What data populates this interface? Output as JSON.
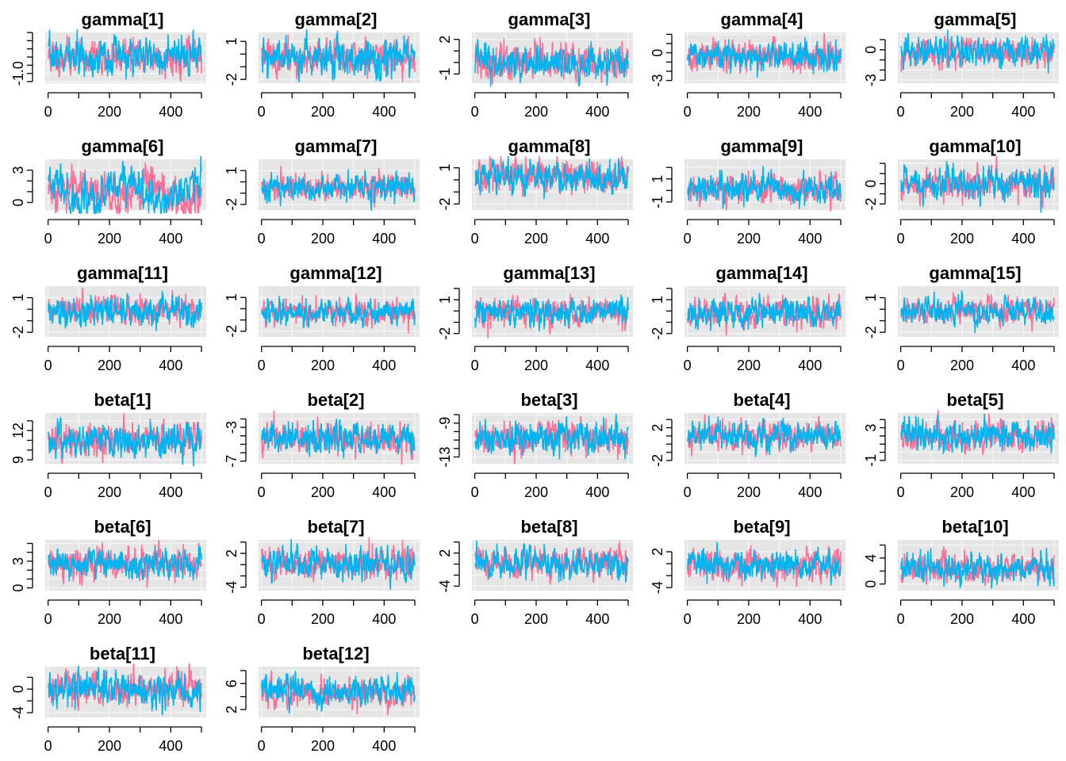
{
  "chart_data": {
    "type": "line",
    "description_of_layout": "grid of MCMC trace plots, 5 per row",
    "colors": {
      "chain1": "#F8766D",
      "chain1_plot": "#FF6E96",
      "chain2": "#00B4F0",
      "panel_bg": "#E5E5E5",
      "grid": "#F4F4F4"
    },
    "x": {
      "min": 1,
      "max": 500,
      "ticks": [
        0,
        200,
        400
      ],
      "minor_ticks": [
        0,
        100,
        200,
        300,
        400,
        500
      ]
    },
    "panels": [
      {
        "title": "gamma[1]",
        "ylim": [
          -1.6,
          1.5
        ],
        "yticks": [
          -1.0
        ],
        "ylabels": [
          "-1.0"
        ],
        "minor": [
          -1.5,
          -1.0,
          -0.5,
          0,
          0.5,
          1.0,
          1.5
        ],
        "center": 0.0,
        "sd": 0.55,
        "drift": 0
      },
      {
        "title": "gamma[2]",
        "ylim": [
          -2.3,
          1.7
        ],
        "yticks": [
          -2,
          1
        ],
        "ylabels": [
          "-2",
          "1"
        ],
        "minor": [
          -2,
          -1,
          0,
          1
        ],
        "center": -0.3,
        "sd": 0.7,
        "drift": 0
      },
      {
        "title": "gamma[3]",
        "ylim": [
          -1.8,
          2.6
        ],
        "yticks": [
          -1,
          2
        ],
        "ylabels": [
          "-1",
          "2"
        ],
        "minor": [
          -1,
          0,
          1,
          2
        ],
        "center": 0.0,
        "sd": 0.75,
        "drift": 0
      },
      {
        "title": "gamma[4]",
        "ylim": [
          -3.3,
          2.2
        ],
        "yticks": [
          -3,
          0
        ],
        "ylabels": [
          "-3",
          "0"
        ],
        "minor": [
          -3,
          -2,
          -1,
          0,
          1,
          2
        ],
        "center": -0.3,
        "sd": 0.8,
        "drift": 0
      },
      {
        "title": "gamma[5]",
        "ylim": [
          -3.3,
          1.7
        ],
        "yticks": [
          -3,
          0
        ],
        "ylabels": [
          "-3",
          "0"
        ],
        "minor": [
          -3,
          -2,
          -1,
          0,
          1
        ],
        "center": -0.2,
        "sd": 0.75,
        "drift": 0
      },
      {
        "title": "gamma[6]",
        "ylim": [
          -0.7,
          4.0
        ],
        "yticks": [
          0,
          3
        ],
        "ylabels": [
          "0",
          "3"
        ],
        "minor": [
          0,
          1,
          2,
          3
        ],
        "center": 1.0,
        "sd": 0.9,
        "drift": 1
      },
      {
        "title": "gamma[7]",
        "ylim": [
          -2.5,
          2.0
        ],
        "yticks": [
          -2,
          1
        ],
        "ylabels": [
          "-2",
          "1"
        ],
        "minor": [
          -2,
          -1,
          0,
          1
        ],
        "center": -0.5,
        "sd": 0.6,
        "drift": 0
      },
      {
        "title": "gamma[8]",
        "ylim": [
          -2.5,
          1.7
        ],
        "yticks": [
          -2,
          1
        ],
        "ylabels": [
          "-2",
          "1"
        ],
        "minor": [
          -2,
          -1,
          0,
          1
        ],
        "center": 0.2,
        "sd": 0.7,
        "drift": 0
      },
      {
        "title": "gamma[9]",
        "ylim": [
          -1.7,
          2.7
        ],
        "yticks": [
          -1,
          1
        ],
        "ylabels": [
          "-1",
          "1"
        ],
        "minor": [
          -1,
          0,
          1,
          2
        ],
        "center": 0.1,
        "sd": 0.65,
        "drift": 0
      },
      {
        "title": "gamma[10]",
        "ylim": [
          -2.6,
          2.4
        ],
        "yticks": [
          -2,
          0
        ],
        "ylabels": [
          "-2",
          "0"
        ],
        "minor": [
          -2,
          -1,
          0,
          1,
          2
        ],
        "center": 0.0,
        "sd": 0.8,
        "drift": 0
      },
      {
        "title": "gamma[11]",
        "ylim": [
          -2.4,
          2.0
        ],
        "yticks": [
          -2,
          1
        ],
        "ylabels": [
          "-2",
          "1"
        ],
        "minor": [
          -2,
          -1,
          0,
          1
        ],
        "center": -0.1,
        "sd": 0.65,
        "drift": 0
      },
      {
        "title": "gamma[12]",
        "ylim": [
          -2.5,
          2.0
        ],
        "yticks": [
          -2,
          1
        ],
        "ylabels": [
          "-2",
          "1"
        ],
        "minor": [
          -2,
          -1,
          0,
          1
        ],
        "center": -0.3,
        "sd": 0.55,
        "drift": 0
      },
      {
        "title": "gamma[13]",
        "ylim": [
          -2.3,
          2.2
        ],
        "yticks": [
          -2,
          1
        ],
        "ylabels": [
          "-2",
          "1"
        ],
        "minor": [
          -2,
          -1,
          0,
          1,
          2
        ],
        "center": -0.1,
        "sd": 0.65,
        "drift": 0
      },
      {
        "title": "gamma[14]",
        "ylim": [
          -2.3,
          2.2
        ],
        "yticks": [
          -2,
          1
        ],
        "ylabels": [
          "-2",
          "1"
        ],
        "minor": [
          -2,
          -1,
          0,
          1,
          2
        ],
        "center": -0.1,
        "sd": 0.65,
        "drift": 0
      },
      {
        "title": "gamma[15]",
        "ylim": [
          -2.4,
          2.0
        ],
        "yticks": [
          -2,
          1
        ],
        "ylabels": [
          "-2",
          "1"
        ],
        "minor": [
          -2,
          -1,
          0,
          1
        ],
        "center": -0.1,
        "sd": 0.6,
        "drift": 0
      },
      {
        "title": "beta[1]",
        "ylim": [
          8.6,
          13.8
        ],
        "yticks": [
          9,
          12
        ],
        "ylabels": [
          "9",
          "12"
        ],
        "minor": [
          9,
          10,
          11,
          12,
          13
        ],
        "center": 11.1,
        "sd": 0.9,
        "drift": 0
      },
      {
        "title": "beta[2]",
        "ylim": [
          -7.3,
          -1.3
        ],
        "yticks": [
          -7,
          -3
        ],
        "ylabels": [
          "-7",
          "-3"
        ],
        "minor": [
          -7,
          -6,
          -5,
          -4,
          -3,
          -2
        ],
        "center": -4.3,
        "sd": 0.95,
        "drift": 0
      },
      {
        "title": "beta[3]",
        "ylim": [
          -13.8,
          -7.8
        ],
        "yticks": [
          -13,
          -9
        ],
        "ylabels": [
          "-13",
          "-9"
        ],
        "minor": [
          -13,
          -12,
          -11,
          -10,
          -9,
          -8
        ],
        "center": -10.8,
        "sd": 1.0,
        "drift": 0
      },
      {
        "title": "beta[4]",
        "ylim": [
          -2.4,
          3.8
        ],
        "yticks": [
          -2,
          2
        ],
        "ylabels": [
          "-2",
          "2"
        ],
        "minor": [
          -2,
          -1,
          0,
          1,
          2,
          3
        ],
        "center": 1.0,
        "sd": 0.9,
        "drift": 0
      },
      {
        "title": "beta[5]",
        "ylim": [
          -1.4,
          4.8
        ],
        "yticks": [
          -1,
          3
        ],
        "ylabels": [
          "-1",
          "3"
        ],
        "minor": [
          -1,
          0,
          1,
          2,
          3,
          4
        ],
        "center": 2.0,
        "sd": 0.95,
        "drift": 0
      },
      {
        "title": "beta[6]",
        "ylim": [
          -0.3,
          5.4
        ],
        "yticks": [
          0,
          3
        ],
        "ylabels": [
          "0",
          "3"
        ],
        "minor": [
          0,
          1,
          2,
          3,
          4,
          5
        ],
        "center": 2.8,
        "sd": 0.9,
        "drift": 0
      },
      {
        "title": "beta[7]",
        "ylim": [
          -4.6,
          4.4
        ],
        "yticks": [
          -4,
          2
        ],
        "ylabels": [
          "-4",
          "2"
        ],
        "minor": [
          -4,
          -2,
          0,
          2,
          4
        ],
        "center": 0.0,
        "sd": 1.4,
        "drift": 0
      },
      {
        "title": "beta[8]",
        "ylim": [
          -4.8,
          4.4
        ],
        "yticks": [
          -4,
          2
        ],
        "ylabels": [
          "-4",
          "2"
        ],
        "minor": [
          -4,
          -2,
          0,
          2,
          4
        ],
        "center": 0.2,
        "sd": 1.4,
        "drift": 0
      },
      {
        "title": "beta[9]",
        "ylim": [
          -4.5,
          4.0
        ],
        "yticks": [
          -4,
          2
        ],
        "ylabels": [
          "-4",
          "2"
        ],
        "minor": [
          -4,
          -2,
          0,
          2
        ],
        "center": -0.3,
        "sd": 1.3,
        "drift": 0
      },
      {
        "title": "beta[10]",
        "ylim": [
          -1.0,
          6.8
        ],
        "yticks": [
          0,
          4
        ],
        "ylabels": [
          "0",
          "4"
        ],
        "minor": [
          0,
          2,
          4,
          6
        ],
        "center": 2.4,
        "sd": 1.2,
        "drift": 0
      },
      {
        "title": "beta[11]",
        "ylim": [
          -4.8,
          3.8
        ],
        "yticks": [
          -4,
          0
        ],
        "ylabels": [
          "-4",
          "0"
        ],
        "minor": [
          -4,
          -2,
          0,
          2
        ],
        "center": 0.0,
        "sd": 1.35,
        "drift": 0
      },
      {
        "title": "beta[12]",
        "ylim": [
          0.8,
          8.6
        ],
        "yticks": [
          2,
          6
        ],
        "ylabels": [
          "2",
          "6"
        ],
        "minor": [
          2,
          4,
          6,
          8
        ],
        "center": 4.6,
        "sd": 1.15,
        "drift": 0
      }
    ]
  }
}
